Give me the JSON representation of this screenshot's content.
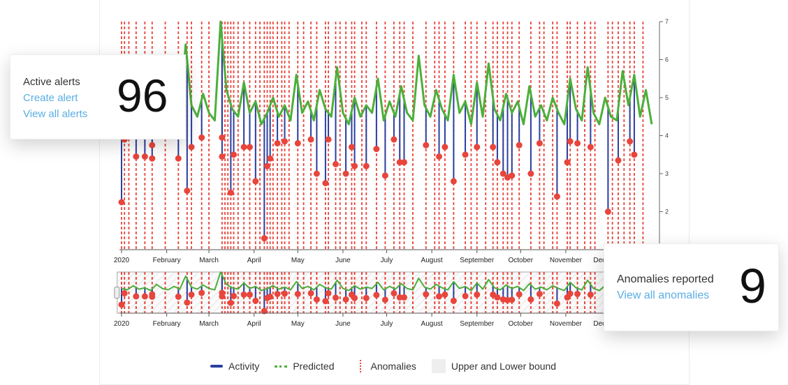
{
  "alerts_card": {
    "title": "Active alerts",
    "create_link": "Create alert",
    "view_link": "View all alerts",
    "count": "96"
  },
  "anomalies_card": {
    "title": "Anomalies reported",
    "view_link": "View all anomalies",
    "count": "9"
  },
  "legend": {
    "activity": "Activity",
    "predicted": "Predicted",
    "anomalies": "Anomalies",
    "bound": "Upper and Lower bound"
  },
  "colors": {
    "activity": "#2b3fa0",
    "predicted": "#4caf3a",
    "anomalies": "#e8453c",
    "bound": "#eeeeee",
    "link": "#5aaee3"
  },
  "chart_data": {
    "type": "line",
    "year": "2020",
    "x_ticks": [
      "2020",
      "February",
      "March",
      "April",
      "May",
      "June",
      "July",
      "August",
      "September",
      "October",
      "November",
      "December"
    ],
    "y_ticks": [
      2,
      3,
      4,
      5,
      6,
      7
    ],
    "ylim": [
      1,
      7
    ],
    "predicted_step_days": 4,
    "predicted": [
      4.6,
      4.4,
      5.0,
      4.5,
      4.7,
      4.3,
      5.2,
      4.6,
      4.4,
      4.9,
      4.5,
      6.4,
      4.8,
      4.5,
      5.1,
      4.6,
      4.4,
      7.0,
      5.2,
      4.7,
      4.5,
      5.4,
      4.6,
      4.9,
      4.3,
      4.6,
      5.0,
      4.5,
      4.8,
      4.4,
      5.6,
      4.6,
      4.9,
      4.4,
      5.2,
      4.7,
      4.5,
      5.8,
      4.6,
      4.3,
      5.0,
      4.5,
      4.8,
      4.6,
      5.5,
      4.4,
      4.9,
      4.5,
      5.3,
      4.6,
      4.4,
      6.1,
      4.8,
      4.5,
      5.2,
      4.7,
      4.4,
      5.6,
      4.6,
      4.9,
      4.3,
      5.4,
      4.5,
      5.9,
      4.7,
      4.4,
      5.1,
      4.6,
      4.9,
      4.3,
      5.3,
      4.5,
      4.8,
      4.4,
      5.0,
      4.6,
      4.3,
      5.5,
      4.7,
      4.4,
      5.8,
      4.6,
      4.3,
      5.0,
      4.5,
      4.4,
      5.7,
      4.8,
      5.6,
      4.5,
      5.2,
      4.3
    ],
    "anomaly_points": [
      [
        0,
        2.25
      ],
      [
        2,
        3.9
      ],
      [
        10,
        3.45
      ],
      [
        16,
        3.45
      ],
      [
        21,
        3.4
      ],
      [
        21,
        3.75
      ],
      [
        39,
        3.4
      ],
      [
        45,
        2.55
      ],
      [
        48,
        3.7
      ],
      [
        55,
        3.95
      ],
      [
        69,
        3.45
      ],
      [
        69,
        3.95
      ],
      [
        75,
        2.5
      ],
      [
        77,
        3.5
      ],
      [
        84,
        3.7
      ],
      [
        88,
        3.7
      ],
      [
        92,
        2.8
      ],
      [
        98,
        1.3
      ],
      [
        100,
        3.2
      ],
      [
        102,
        3.4
      ],
      [
        107,
        3.8
      ],
      [
        112,
        3.85
      ],
      [
        121,
        3.8
      ],
      [
        130,
        3.9
      ],
      [
        134,
        3.0
      ],
      [
        140,
        2.75
      ],
      [
        142,
        3.9
      ],
      [
        147,
        3.25
      ],
      [
        154,
        3.0
      ],
      [
        158,
        3.7
      ],
      [
        160,
        3.2
      ],
      [
        168,
        3.2
      ],
      [
        175,
        3.65
      ],
      [
        181,
        2.95
      ],
      [
        187,
        3.9
      ],
      [
        191,
        3.3
      ],
      [
        194,
        3.3
      ],
      [
        209,
        3.75
      ],
      [
        218,
        3.45
      ],
      [
        222,
        3.7
      ],
      [
        228,
        2.8
      ],
      [
        236,
        3.5
      ],
      [
        244,
        3.7
      ],
      [
        255,
        3.7
      ],
      [
        258,
        3.3
      ],
      [
        262,
        3.0
      ],
      [
        265,
        2.9
      ],
      [
        268,
        2.95
      ],
      [
        273,
        3.75
      ],
      [
        281,
        3.0
      ],
      [
        287,
        3.8
      ],
      [
        299,
        2.4
      ],
      [
        306,
        3.3
      ],
      [
        308,
        3.85
      ],
      [
        313,
        3.8
      ],
      [
        322,
        3.7
      ],
      [
        334,
        2.0
      ],
      [
        341,
        3.35
      ],
      [
        349,
        3.85
      ],
      [
        352,
        3.5
      ]
    ],
    "extra_anomaly_days": [
      5,
      30,
      60,
      71,
      73,
      80,
      95,
      104,
      110,
      115,
      125,
      150,
      165,
      200,
      215,
      240,
      250,
      290,
      296,
      318,
      325,
      337,
      345,
      358
    ]
  }
}
